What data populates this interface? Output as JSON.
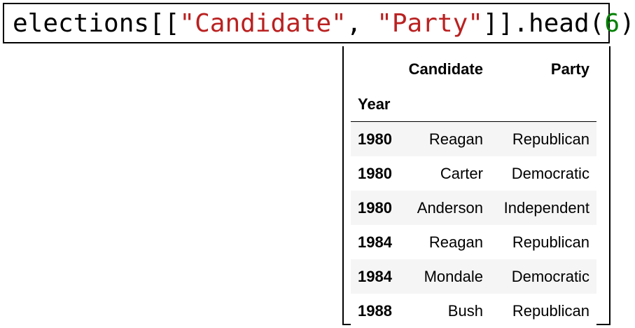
{
  "code_cell": {
    "tokens": [
      {
        "text": "elections[[",
        "kind": "plain"
      },
      {
        "text": "\"Candidate\"",
        "kind": "string"
      },
      {
        "text": ", ",
        "kind": "plain"
      },
      {
        "text": "\"Party\"",
        "kind": "string"
      },
      {
        "text": "]].head(",
        "kind": "plain"
      },
      {
        "text": "6",
        "kind": "number"
      },
      {
        "text": ")",
        "kind": "plain"
      }
    ],
    "colors": {
      "plain": "#000000",
      "string": "#ba2121",
      "number": "#008000"
    }
  },
  "output_table": {
    "columns": [
      "Candidate",
      "Party"
    ],
    "index_name": "Year",
    "rows": [
      {
        "index": "1980",
        "Candidate": "Reagan",
        "Party": "Republican"
      },
      {
        "index": "1980",
        "Candidate": "Carter",
        "Party": "Democratic"
      },
      {
        "index": "1980",
        "Candidate": "Anderson",
        "Party": "Independent"
      },
      {
        "index": "1984",
        "Candidate": "Reagan",
        "Party": "Republican"
      },
      {
        "index": "1984",
        "Candidate": "Mondale",
        "Party": "Democratic"
      },
      {
        "index": "1988",
        "Candidate": "Bush",
        "Party": "Republican"
      }
    ],
    "stripe_color": "#f5f5f5"
  }
}
